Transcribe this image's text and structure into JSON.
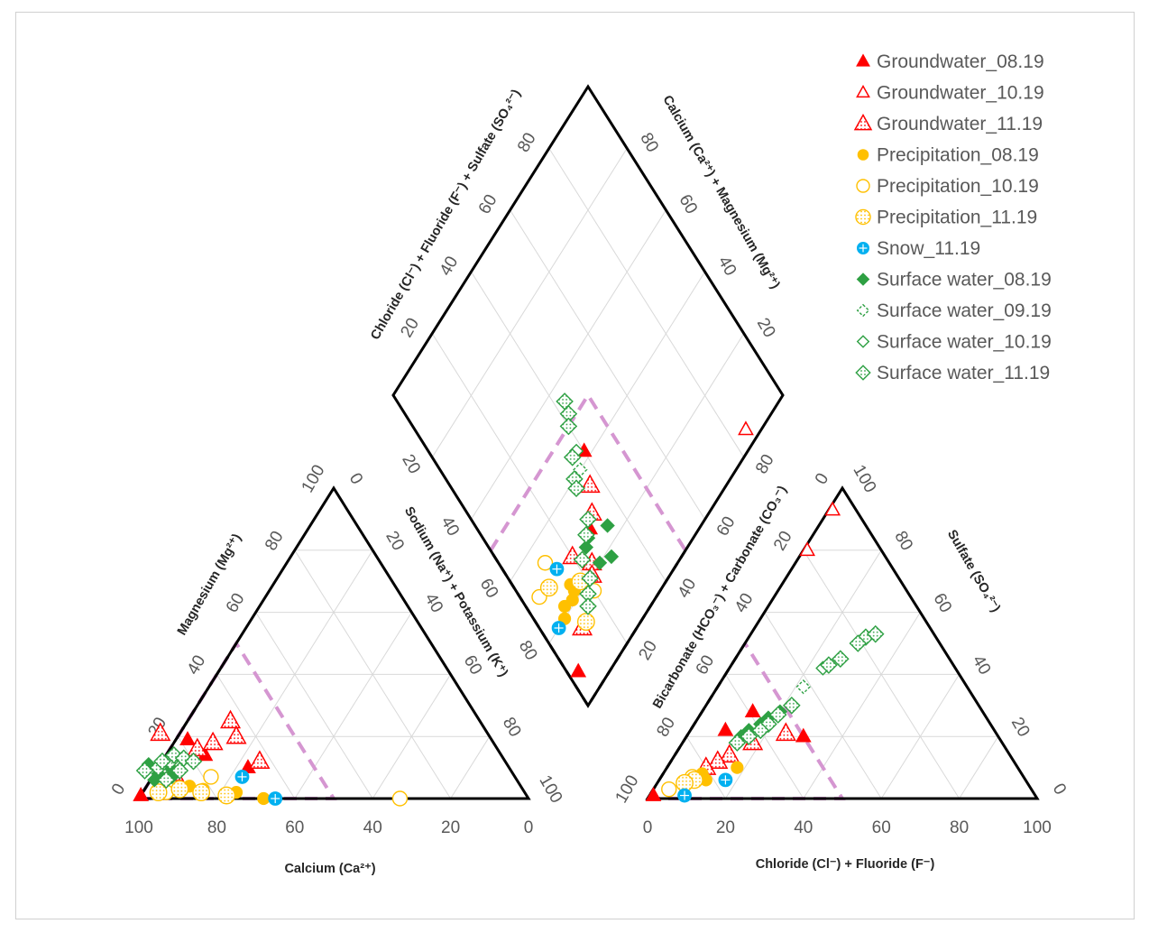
{
  "chart_data": {
    "type": "scatter",
    "subtype": "piper-diagram",
    "cation_triangle": {
      "xlabel": "Calcium (Ca²⁺)",
      "left_label": "Magnesium (Mg²⁺)",
      "right_label": "Sodium (Na⁺) + Potassium (K⁺)",
      "bottom_ticks": [
        "100",
        "80",
        "60",
        "40",
        "20",
        "0"
      ],
      "left_ticks": [
        "0",
        "20",
        "40",
        "60",
        "80",
        "100"
      ],
      "right_ticks": [
        "0",
        "20",
        "40",
        "60",
        "80",
        "100"
      ]
    },
    "anion_triangle": {
      "xlabel": "Chloride (Cl⁻) + Fluoride (F⁻)",
      "left_label": "Bicarbonate (HCO₃⁻) + Carbonate (CO₃⁻)",
      "right_label": "Sulfate (SO₄²⁻)",
      "bottom_ticks": [
        "0",
        "20",
        "40",
        "60",
        "80",
        "100"
      ],
      "left_ticks": [
        "100",
        "80",
        "60",
        "40",
        "20",
        "0"
      ],
      "right_ticks": [
        "100",
        "80",
        "60",
        "40",
        "20",
        "0"
      ]
    },
    "diamond": {
      "left_label": "Chloride (Cl⁻) + Fluoride (F⁻) + Sulfate (SO₄²⁻)",
      "right_label": "Calcium (Ca²⁺) + Magnesium (Mg²⁺)",
      "upper_left_ticks": [
        "20",
        "40",
        "60",
        "80"
      ],
      "upper_right_ticks": [
        "80",
        "60",
        "40",
        "20"
      ],
      "lower_left_ticks": [
        "20",
        "40",
        "60",
        "80"
      ],
      "lower_right_ticks": [
        "20",
        "40",
        "60",
        "80"
      ]
    },
    "series": [
      {
        "name": "Groundwater_08.19",
        "marker": "triangle-filled",
        "color": "#ff0000",
        "cation": [
          [
            99,
            1
          ],
          [
            78,
            19
          ],
          [
            76,
            14
          ],
          [
            67,
            10
          ]
        ],
        "anion": [
          [
            1,
            1
          ],
          [
            9,
            22
          ],
          [
            13,
            28
          ],
          [
            30,
            20
          ]
        ],
        "diamond": [
          [
            8,
            3
          ],
          [
            28,
            29
          ],
          [
            42,
            40
          ]
        ]
      },
      {
        "name": "Groundwater_10.19",
        "marker": "triangle-open",
        "color": "#ff0000",
        "cation": [],
        "anion": [
          [
            1,
            93
          ],
          [
            1,
            80
          ]
        ],
        "diamond": [
          [
            4,
            85
          ]
        ]
      },
      {
        "name": "Groundwater_11.19",
        "marker": "triangle-dotted",
        "color": "#ff0000",
        "cation": [
          [
            84,
            21
          ],
          [
            77,
            16
          ],
          [
            72,
            18
          ],
          [
            64,
            25
          ],
          [
            65,
            20
          ],
          [
            63,
            12
          ],
          [
            89,
            10
          ],
          [
            87,
            8
          ]
        ],
        "anion": [
          [
            18,
            18
          ],
          [
            25,
            21
          ],
          [
            14,
            14
          ],
          [
            12,
            12
          ],
          [
            10,
            10
          ]
        ],
        "diamond": [
          [
            14,
            11
          ],
          [
            28,
            20
          ],
          [
            30,
            32
          ],
          [
            35,
            36
          ],
          [
            22,
            24
          ],
          [
            20,
            22
          ]
        ]
      },
      {
        "name": "Precipitation_08.19",
        "marker": "circle-filled",
        "color": "#ffc000",
        "cation": [
          [
            85,
            4
          ],
          [
            82,
            3
          ],
          [
            74,
            2
          ],
          [
            68,
            0
          ]
        ],
        "anion": [
          [
            10,
            8
          ],
          [
            12,
            6
          ],
          [
            18,
            10
          ]
        ],
        "diamond": [
          [
            20,
            8
          ],
          [
            22,
            10
          ],
          [
            21,
            13
          ],
          [
            22,
            15
          ],
          [
            24,
            15
          ]
        ]
      },
      {
        "name": "Precipitation_10.19",
        "marker": "circle-open",
        "color": "#ffc000",
        "cation": [
          [
            92,
            2
          ],
          [
            78,
            7
          ],
          [
            33,
            0
          ]
        ],
        "anion": [
          [
            4,
            3
          ],
          [
            8,
            7
          ]
        ],
        "diamond": [
          [
            30,
            5
          ],
          [
            34,
            12
          ],
          [
            17,
            20
          ]
        ]
      },
      {
        "name": "Precipitation_11.19",
        "marker": "circle-dotted",
        "color": "#ffc000",
        "cation": [
          [
            94,
            2
          ],
          [
            88,
            3
          ],
          [
            83,
            2
          ],
          [
            77,
            1
          ]
        ],
        "anion": [
          [
            9,
            6
          ],
          [
            7,
            5
          ]
        ],
        "diamond": [
          [
            14,
            13
          ],
          [
            29,
            9
          ],
          [
            22,
            18
          ]
        ]
      },
      {
        "name": "Snow_11.19",
        "marker": "circle-cross",
        "color": "#00b0f0",
        "cation": [
          [
            70,
            7
          ],
          [
            65,
            0
          ]
        ],
        "anion": [
          [
            17,
            6
          ],
          [
            9,
            1
          ]
        ],
        "diamond": [
          [
            30,
            14
          ],
          [
            20,
            5
          ]
        ]
      },
      {
        "name": "Surface water_08.19",
        "marker": "diamond-filled",
        "color": "#2ea043",
        "cation": [
          [
            93,
            6
          ],
          [
            88,
            7
          ],
          [
            91,
            8
          ],
          [
            87,
            10
          ],
          [
            92,
            11
          ]
        ],
        "anion": [
          [
            20,
            28
          ],
          [
            18,
            26
          ],
          [
            17,
            24
          ],
          [
            15,
            22
          ],
          [
            14,
            20
          ]
        ],
        "diamond": [
          [
            18,
            30
          ],
          [
            20,
            26
          ],
          [
            26,
            25
          ],
          [
            27,
            27
          ],
          [
            24,
            34
          ]
        ]
      },
      {
        "name": "Surface water_09.19",
        "marker": "diamond-dashed",
        "color": "#2ea043",
        "cation": [],
        "anion": [
          [
            22,
            36
          ]
        ],
        "diamond": [
          [
            40,
            36
          ]
        ]
      },
      {
        "name": "Surface water_10.19",
        "marker": "diamond-open",
        "color": "#2ea043",
        "cation": [],
        "anion": [
          [
            24,
            42
          ]
        ],
        "diamond": [
          [
            44,
            38
          ]
        ]
      },
      {
        "name": "Surface water_11.19",
        "marker": "diamond-dotted",
        "color": "#2ea043",
        "cation": [
          [
            94,
            9
          ],
          [
            90,
            10
          ],
          [
            86,
            12
          ],
          [
            84,
            14
          ],
          [
            82,
            13
          ],
          [
            88,
            12
          ],
          [
            90,
            6
          ],
          [
            85,
            9
          ],
          [
            80,
            12
          ]
        ],
        "anion": [
          [
            30,
            52
          ],
          [
            29,
            50
          ],
          [
            32,
            53
          ],
          [
            27,
            45
          ],
          [
            25,
            43
          ],
          [
            22,
            30
          ],
          [
            20,
            27
          ],
          [
            19,
            24
          ],
          [
            18,
            22
          ],
          [
            16,
            20
          ],
          [
            14,
            18
          ]
        ],
        "diamond": [
          [
            55,
            43
          ],
          [
            52,
            42
          ],
          [
            50,
            40
          ],
          [
            44,
            36
          ],
          [
            40,
            33
          ],
          [
            38,
            32
          ],
          [
            30,
            30
          ],
          [
            28,
            27
          ],
          [
            25,
            22
          ],
          [
            20,
            21
          ],
          [
            18,
            18
          ],
          [
            16,
            16
          ]
        ]
      }
    ]
  }
}
